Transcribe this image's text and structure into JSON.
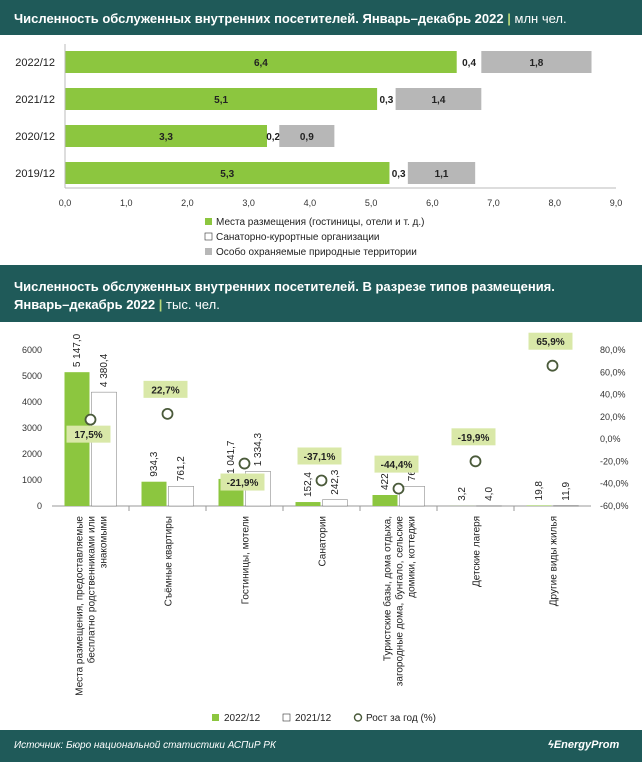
{
  "chart_data": [
    {
      "type": "bar",
      "orientation": "horizontal",
      "stacked": true,
      "title": "Численность обслуженных внутренних посетителей. Январь–декабрь 2022",
      "unit": "млн чел.",
      "categories": [
        "2022/12",
        "2021/12",
        "2020/12",
        "2019/12"
      ],
      "series": [
        {
          "name": "Места размещения (гостиницы, отели и т. д.)",
          "values": [
            6.4,
            5.1,
            3.3,
            5.3
          ],
          "labels": [
            "6,4",
            "5,1",
            "3,3",
            "5,3"
          ],
          "color": "#8cc63f"
        },
        {
          "name": "Санаторно-курортные организации",
          "values": [
            0.4,
            0.3,
            0.2,
            0.3
          ],
          "labels": [
            "0,4",
            "0,3",
            "0,2",
            "0,3"
          ],
          "color": "#ffffff"
        },
        {
          "name": "Особо охраняемые природные территории",
          "values": [
            1.8,
            1.4,
            0.9,
            1.1
          ],
          "labels": [
            "1,8",
            "1,4",
            "0,9",
            "1,1"
          ],
          "color": "#b7b7b7"
        }
      ],
      "xlim": [
        0,
        9
      ],
      "x_ticks": [
        "0,0",
        "1,0",
        "2,0",
        "3,0",
        "4,0",
        "5,0",
        "6,0",
        "7,0",
        "8,0",
        "9,0"
      ],
      "legend_position": "bottom-center",
      "grid": false
    },
    {
      "type": "bar",
      "title": "Численность обслуженных внутренних посетителей. В разрезе типов размещения.",
      "title_line2": "Январь–декабрь 2022",
      "unit": "тыс. чел.",
      "categories": [
        "Места размещения, предоставляемые бесплатно родственниками или знакомыми",
        "Съёмные квартиры",
        "Гостиницы, мотели",
        "Санатории",
        "Туристские базы, дома отдыха, загородные дома, бунгало, сельские домики, коттеджи",
        "Детские лагеря",
        "Другие виды жилья"
      ],
      "category_label_lines": [
        [
          "Места размещения, предоставляемые",
          "бесплатно родственниками или",
          "знакомыми"
        ],
        [
          "Съёмные квартиры"
        ],
        [
          "Гостиницы, мотели"
        ],
        [
          "Санатории"
        ],
        [
          "Туристские базы, дома отдыха,",
          "загородные дома, бунгало, сельские",
          "домики, коттеджи"
        ],
        [
          "Детские лагеря"
        ],
        [
          "Другие виды жилья"
        ]
      ],
      "series": [
        {
          "name": "2022/12",
          "values": [
            5147.0,
            934.3,
            1041.7,
            152.4,
            422.9,
            3.2,
            19.8
          ],
          "labels": [
            "5 147,0",
            "934,3",
            "1 041,7",
            "152,4",
            "422,9",
            "3,2",
            "19,8"
          ],
          "color": "#8cc63f"
        },
        {
          "name": "2021/12",
          "values": [
            4380.4,
            761.2,
            1334.3,
            242.3,
            761.2,
            4.0,
            11.9
          ],
          "labels": [
            "4 380,4",
            "761,2",
            "1 334,3",
            "242,3",
            "761,2",
            "4,0",
            "11,9"
          ],
          "color": "#ffffff"
        },
        {
          "name": "Рост за год (%)",
          "axis": "right",
          "values": [
            17.5,
            22.7,
            -21.9,
            -37.1,
            -44.4,
            -19.9,
            65.9
          ],
          "labels": [
            "17,5%",
            "22,7%",
            "-21,9%",
            "-37,1%",
            "-44,4%",
            "-19,9%",
            "65,9%"
          ],
          "color": "#d9e8a8"
        }
      ],
      "ylim_left": [
        0,
        6000
      ],
      "y_ticks_left": [
        "0",
        "1000",
        "2000",
        "3000",
        "4000",
        "5000",
        "6000"
      ],
      "ylim_right": [
        -60,
        80
      ],
      "y_ticks_right": [
        "-60,0%",
        "-40,0%",
        "-20,0%",
        "0,0%",
        "20,0%",
        "40,0%",
        "60,0%",
        "80,0%"
      ],
      "legend_position": "bottom-center",
      "grid": false
    }
  ],
  "footer": {
    "source": "Источник: Бюро национальной статистики АСПиР РК",
    "brand": "EnergyProm"
  }
}
